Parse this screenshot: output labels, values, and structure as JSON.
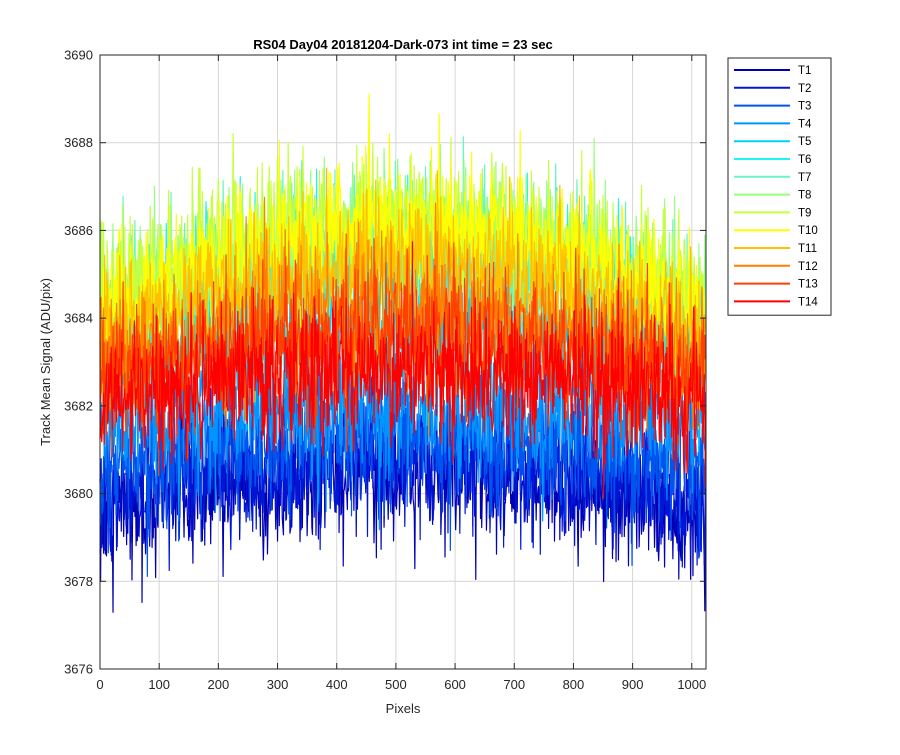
{
  "chart_data": {
    "type": "line",
    "title": "RS04 Day04 20181204-Dark-073 int time = 23 sec",
    "xlabel": "Pixels",
    "ylabel": "Track Mean Signal (ADU/pix)",
    "xlim": [
      0,
      1024
    ],
    "ylim": [
      3676,
      3690
    ],
    "xticks": [
      "0",
      "100",
      "200",
      "300",
      "400",
      "500",
      "600",
      "700",
      "800",
      "900",
      "1000"
    ],
    "yticks": [
      "3676",
      "3678",
      "3680",
      "3682",
      "3684",
      "3686",
      "3688",
      "3690"
    ],
    "grid": true,
    "legend_placement": "outside-top-right",
    "n_points_per_series": 1024,
    "noise_std_approx": 0.9,
    "series": [
      {
        "name": "T1",
        "color": "#0000b4",
        "center_y": 3680.4,
        "edge_y": 3679.6
      },
      {
        "name": "T2",
        "color": "#0016d6",
        "center_y": 3680.8,
        "edge_y": 3680.0
      },
      {
        "name": "T3",
        "color": "#0055ee",
        "center_y": 3681.3,
        "edge_y": 3680.6
      },
      {
        "name": "T4",
        "color": "#0095ff",
        "center_y": 3682.0,
        "edge_y": 3681.6
      },
      {
        "name": "T5",
        "color": "#00d2ff",
        "center_y": 3683.7,
        "edge_y": 3683.2
      },
      {
        "name": "T6",
        "color": "#1ef5f0",
        "center_y": 3685.4,
        "edge_y": 3683.8
      },
      {
        "name": "T7",
        "color": "#66f6c2",
        "center_y": 3685.6,
        "edge_y": 3683.9
      },
      {
        "name": "T8",
        "color": "#96ff80",
        "center_y": 3686.0,
        "edge_y": 3684.2
      },
      {
        "name": "T9",
        "color": "#c8ff3c",
        "center_y": 3686.2,
        "edge_y": 3684.4
      },
      {
        "name": "T10",
        "color": "#ffff00",
        "center_y": 3686.0,
        "edge_y": 3684.0
      },
      {
        "name": "T11",
        "color": "#ffc000",
        "center_y": 3685.2,
        "edge_y": 3683.4
      },
      {
        "name": "T12",
        "color": "#ff8000",
        "center_y": 3684.2,
        "edge_y": 3682.9
      },
      {
        "name": "T13",
        "color": "#ff4000",
        "center_y": 3683.6,
        "edge_y": 3682.6
      },
      {
        "name": "T14",
        "color": "#ff0000",
        "center_y": 3682.8,
        "edge_y": 3682.1
      }
    ]
  }
}
